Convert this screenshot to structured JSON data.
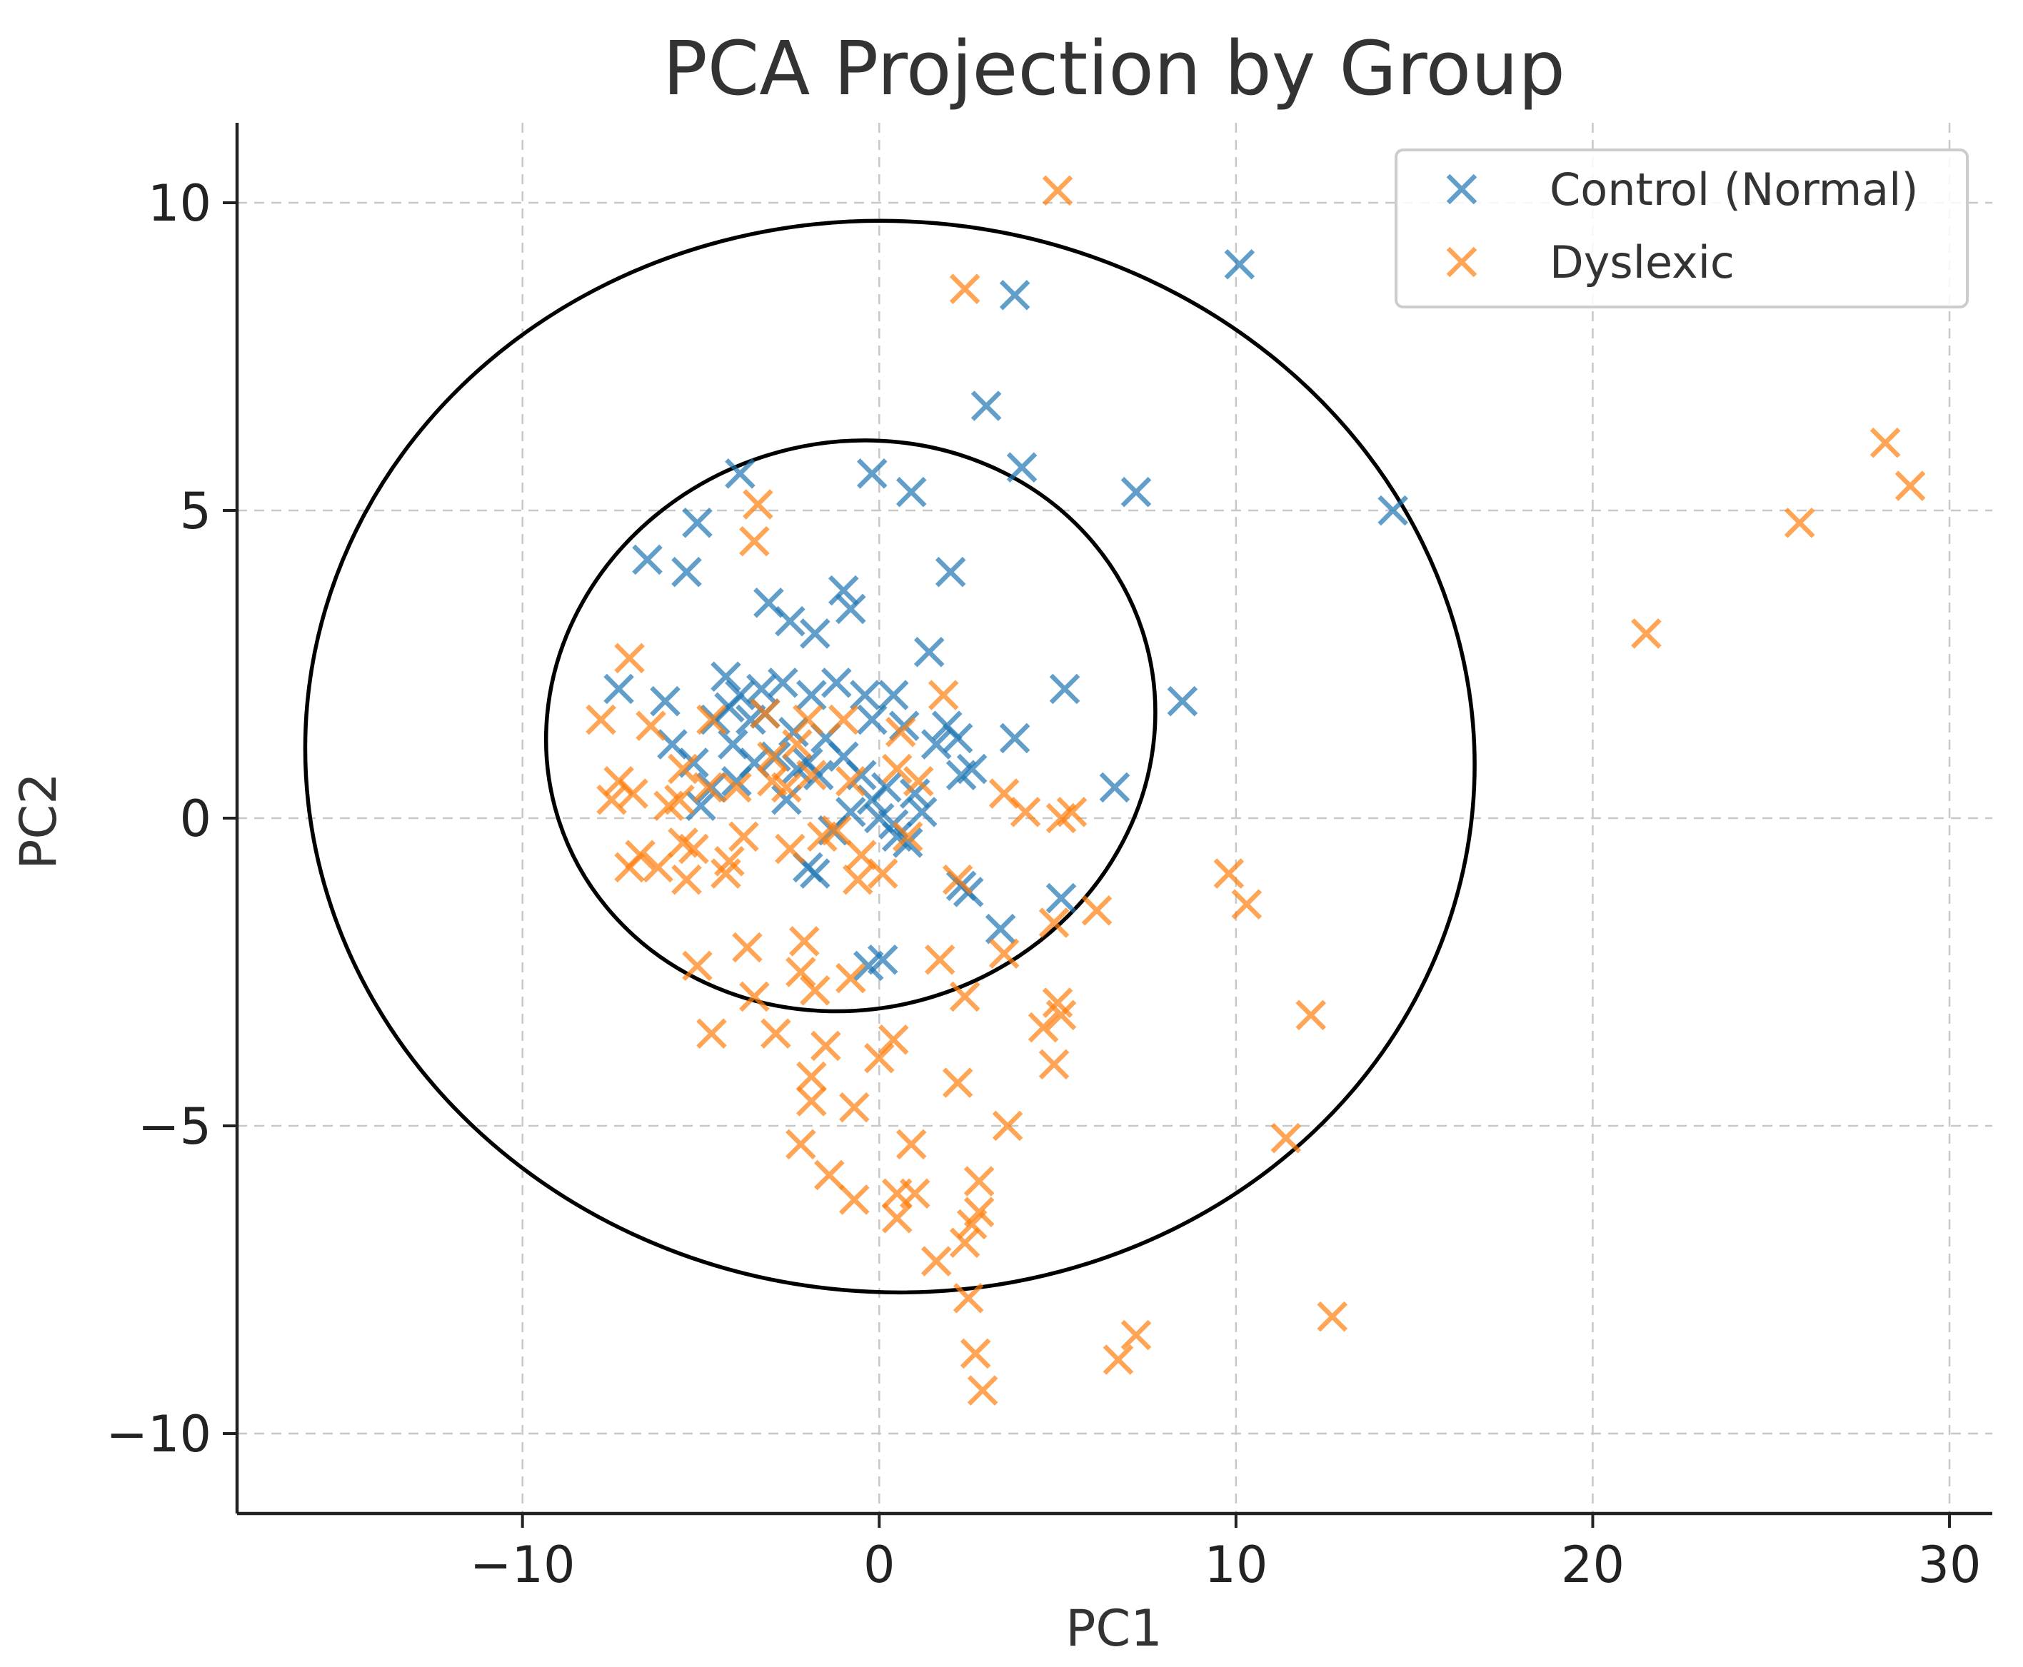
{
  "chart_data": {
    "type": "scatter",
    "title": "PCA Projection by Group",
    "xlabel": "PC1",
    "ylabel": "PC2",
    "xlim": [
      -18,
      31.2
    ],
    "ylim": [
      -11.3,
      11.3
    ],
    "xticks": [
      -10,
      0,
      10,
      20,
      30
    ],
    "yticks": [
      -10,
      -5,
      0,
      5,
      10
    ],
    "xtick_labels": [
      "−10",
      "0",
      "10",
      "20",
      "30"
    ],
    "ytick_labels": [
      "−10",
      "−5",
      "0",
      "5",
      "10"
    ],
    "grid": true,
    "legend_position": "top-right",
    "marker": "x",
    "series": [
      {
        "name": "Control (Normal)",
        "color": "#1f77b4",
        "points": [
          [
            3.8,
            8.5
          ],
          [
            10.1,
            9.0
          ],
          [
            14.4,
            5.0
          ],
          [
            3.0,
            6.7
          ],
          [
            4.0,
            5.7
          ],
          [
            7.2,
            5.3
          ],
          [
            -0.2,
            5.6
          ],
          [
            0.9,
            5.3
          ],
          [
            -3.9,
            5.6
          ],
          [
            -5.1,
            4.8
          ],
          [
            -6.5,
            4.2
          ],
          [
            -5.4,
            4.0
          ],
          [
            2.0,
            4.0
          ],
          [
            -3.1,
            3.5
          ],
          [
            -1.0,
            3.7
          ],
          [
            -0.8,
            3.4
          ],
          [
            -2.5,
            3.2
          ],
          [
            -1.8,
            3.0
          ],
          [
            1.4,
            2.7
          ],
          [
            5.2,
            2.1
          ],
          [
            8.5,
            1.9
          ],
          [
            -7.3,
            2.1
          ],
          [
            -6.0,
            1.9
          ],
          [
            -5.8,
            1.2
          ],
          [
            -4.3,
            2.3
          ],
          [
            -3.9,
            2.0
          ],
          [
            -3.3,
            2.1
          ],
          [
            -2.7,
            2.2
          ],
          [
            -1.9,
            2.0
          ],
          [
            -1.2,
            2.2
          ],
          [
            -0.4,
            2.0
          ],
          [
            0.4,
            2.0
          ],
          [
            -0.2,
            1.6
          ],
          [
            1.9,
            1.5
          ],
          [
            2.2,
            1.3
          ],
          [
            3.8,
            1.3
          ],
          [
            -4.6,
            1.6
          ],
          [
            -4.1,
            1.2
          ],
          [
            -3.5,
            0.9
          ],
          [
            -2.9,
            1.0
          ],
          [
            -2.3,
            0.8
          ],
          [
            -1.7,
            0.7
          ],
          [
            -1.0,
            1.0
          ],
          [
            -0.5,
            0.7
          ],
          [
            0.2,
            0.5
          ],
          [
            -5.2,
            0.9
          ],
          [
            -4.7,
            0.5
          ],
          [
            -5.0,
            0.2
          ],
          [
            -0.8,
            0.1
          ],
          [
            -1.3,
            -0.2
          ],
          [
            0.0,
            0.0
          ],
          [
            0.5,
            -0.3
          ],
          [
            0.8,
            -0.4
          ],
          [
            1.2,
            0.1
          ],
          [
            2.3,
            0.7
          ],
          [
            2.6,
            0.8
          ],
          [
            6.6,
            0.5
          ],
          [
            -1.8,
            -0.9
          ],
          [
            -2.0,
            -0.8
          ],
          [
            2.3,
            -1.1
          ],
          [
            2.5,
            -1.2
          ],
          [
            5.1,
            -1.3
          ],
          [
            3.4,
            -1.8
          ],
          [
            -0.3,
            -2.4
          ],
          [
            0.1,
            -2.3
          ],
          [
            -4.2,
            1.8
          ],
          [
            -3.6,
            1.6
          ],
          [
            -2.4,
            1.4
          ],
          [
            -1.5,
            1.3
          ],
          [
            0.7,
            1.5
          ],
          [
            1.6,
            1.2
          ],
          [
            -3.2,
            1.7
          ],
          [
            -2.0,
            0.9
          ],
          [
            -0.2,
            0.3
          ],
          [
            0.4,
            -0.1
          ],
          [
            -4.0,
            0.6
          ],
          [
            -2.6,
            0.3
          ],
          [
            1.0,
            0.4
          ]
        ]
      },
      {
        "name": "Dyslexic",
        "color": "#ff7f0e",
        "points": [
          [
            5.0,
            10.2
          ],
          [
            2.4,
            8.6
          ],
          [
            28.2,
            6.1
          ],
          [
            28.9,
            5.4
          ],
          [
            25.8,
            4.8
          ],
          [
            21.5,
            3.0
          ],
          [
            -3.4,
            5.1
          ],
          [
            -3.5,
            4.5
          ],
          [
            -7.0,
            2.6
          ],
          [
            1.8,
            2.0
          ],
          [
            -7.8,
            1.6
          ],
          [
            -6.4,
            1.5
          ],
          [
            -4.7,
            1.6
          ],
          [
            -3.2,
            1.7
          ],
          [
            -2.0,
            1.6
          ],
          [
            -1.0,
            1.6
          ],
          [
            0.6,
            1.4
          ],
          [
            -7.3,
            0.6
          ],
          [
            -7.5,
            0.3
          ],
          [
            -6.9,
            0.4
          ],
          [
            -5.5,
            0.8
          ],
          [
            -5.6,
            0.3
          ],
          [
            -4.8,
            0.5
          ],
          [
            -4.0,
            0.5
          ],
          [
            -3.0,
            0.6
          ],
          [
            -2.6,
            0.5
          ],
          [
            -1.9,
            0.7
          ],
          [
            -0.8,
            0.6
          ],
          [
            0.5,
            0.8
          ],
          [
            1.1,
            0.6
          ],
          [
            3.5,
            0.4
          ],
          [
            4.1,
            0.1
          ],
          [
            5.1,
            0.0
          ],
          [
            5.4,
            0.1
          ],
          [
            -6.7,
            -0.6
          ],
          [
            -6.2,
            -0.8
          ],
          [
            -5.5,
            -0.4
          ],
          [
            -5.2,
            -0.5
          ],
          [
            -4.2,
            -0.7
          ],
          [
            -3.8,
            -0.3
          ],
          [
            -2.5,
            -0.5
          ],
          [
            -1.6,
            -0.3
          ],
          [
            -0.5,
            -0.6
          ],
          [
            0.1,
            -0.9
          ],
          [
            -0.6,
            -1.0
          ],
          [
            -5.4,
            -1.0
          ],
          [
            -4.3,
            -0.9
          ],
          [
            -7.0,
            -0.8
          ],
          [
            9.8,
            -0.9
          ],
          [
            10.3,
            -1.4
          ],
          [
            2.2,
            -1.0
          ],
          [
            6.1,
            -1.5
          ],
          [
            4.9,
            -1.7
          ],
          [
            -3.7,
            -2.1
          ],
          [
            -2.1,
            -2.0
          ],
          [
            -2.2,
            -2.5
          ],
          [
            -5.1,
            -2.4
          ],
          [
            -1.8,
            -2.8
          ],
          [
            -0.8,
            -2.6
          ],
          [
            1.7,
            -2.3
          ],
          [
            3.5,
            -2.2
          ],
          [
            2.4,
            -2.9
          ],
          [
            5.0,
            -3.0
          ],
          [
            4.6,
            -3.4
          ],
          [
            5.1,
            -3.2
          ],
          [
            12.1,
            -3.2
          ],
          [
            -3.5,
            -2.9
          ],
          [
            -4.7,
            -3.5
          ],
          [
            -2.9,
            -3.5
          ],
          [
            -1.5,
            -3.7
          ],
          [
            0.4,
            -3.6
          ],
          [
            0.0,
            -3.9
          ],
          [
            4.9,
            -4.0
          ],
          [
            -1.9,
            -4.2
          ],
          [
            -1.9,
            -4.6
          ],
          [
            -0.7,
            -4.7
          ],
          [
            2.2,
            -4.3
          ],
          [
            3.6,
            -5.0
          ],
          [
            11.4,
            -5.2
          ],
          [
            -2.2,
            -5.3
          ],
          [
            0.9,
            -5.3
          ],
          [
            -1.4,
            -5.8
          ],
          [
            -0.7,
            -6.2
          ],
          [
            0.5,
            -6.1
          ],
          [
            1.0,
            -6.1
          ],
          [
            0.5,
            -6.5
          ],
          [
            2.8,
            -5.9
          ],
          [
            2.8,
            -6.4
          ],
          [
            2.6,
            -6.6
          ],
          [
            2.4,
            -6.9
          ],
          [
            1.6,
            -7.2
          ],
          [
            2.5,
            -7.8
          ],
          [
            12.7,
            -8.1
          ],
          [
            7.2,
            -8.4
          ],
          [
            6.7,
            -8.8
          ],
          [
            2.7,
            -8.7
          ],
          [
            2.9,
            -9.3
          ],
          [
            -3.0,
            1.0
          ],
          [
            -1.2,
            -0.2
          ],
          [
            0.8,
            -0.3
          ],
          [
            -5.9,
            0.2
          ],
          [
            -2.3,
            1.2
          ]
        ]
      }
    ],
    "ellipses": [
      {
        "center": [
          0.3,
          1.0
        ],
        "semi_axes": [
          16.4,
          8.7
        ],
        "angle_deg": -5
      },
      {
        "center": [
          -0.8,
          1.5
        ],
        "semi_axes": [
          8.6,
          4.6
        ],
        "angle_deg": 18
      }
    ]
  }
}
